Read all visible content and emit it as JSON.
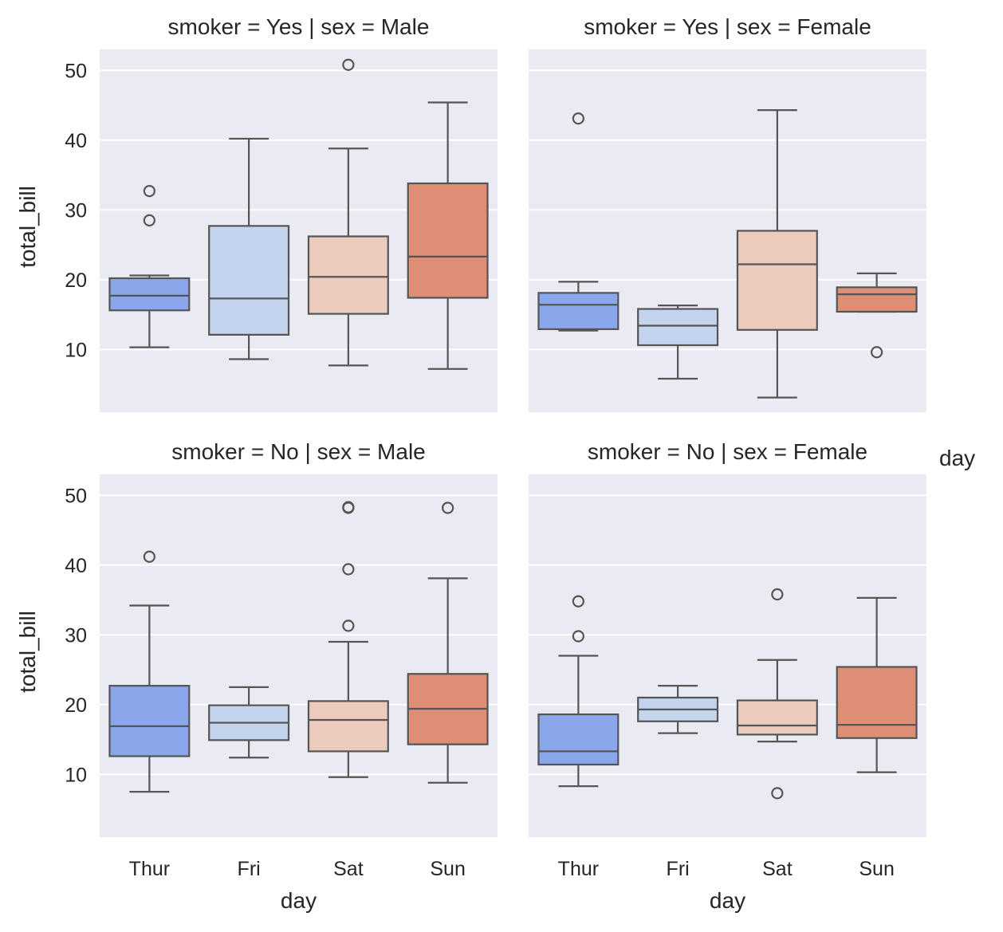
{
  "chart_data": {
    "type": "box",
    "row_var": "smoker",
    "col_var": "sex",
    "x_var": "day",
    "y_var": "total_bill",
    "categories": [
      "Thur",
      "Fri",
      "Sat",
      "Sun"
    ],
    "palette": [
      "#89a7ea",
      "#c4d4ef",
      "#eccbbd",
      "#df8e76"
    ],
    "ylim": [
      1,
      53
    ],
    "yticks": [
      10,
      20,
      30,
      40,
      50
    ],
    "legend_title": "day",
    "panels": [
      {
        "title": "smoker = Yes | sex = Male",
        "ylabel": "total_bill",
        "xlabel": "",
        "boxes": [
          {
            "day": "Thur",
            "q1": 15.6,
            "median": 17.7,
            "q3": 20.2,
            "whislo": 10.3,
            "whishi": 20.6,
            "fliers": [
              32.7,
              28.5
            ]
          },
          {
            "day": "Fri",
            "q1": 12.1,
            "median": 17.3,
            "q3": 27.7,
            "whislo": 8.6,
            "whishi": 40.2,
            "fliers": []
          },
          {
            "day": "Sat",
            "q1": 15.1,
            "median": 20.4,
            "q3": 26.2,
            "whislo": 7.7,
            "whishi": 38.8,
            "fliers": [
              50.8
            ]
          },
          {
            "day": "Sun",
            "q1": 17.4,
            "median": 23.3,
            "q3": 33.8,
            "whislo": 7.2,
            "whishi": 45.4,
            "fliers": []
          }
        ]
      },
      {
        "title": "smoker = Yes | sex = Female",
        "ylabel": "",
        "xlabel": "",
        "boxes": [
          {
            "day": "Thur",
            "q1": 12.9,
            "median": 16.4,
            "q3": 18.1,
            "whislo": 12.7,
            "whishi": 19.7,
            "fliers": [
              43.1
            ]
          },
          {
            "day": "Fri",
            "q1": 10.6,
            "median": 13.4,
            "q3": 15.8,
            "whislo": 5.8,
            "whishi": 16.3,
            "fliers": []
          },
          {
            "day": "Sat",
            "q1": 12.8,
            "median": 22.2,
            "q3": 27.0,
            "whislo": 3.1,
            "whishi": 44.3,
            "fliers": []
          },
          {
            "day": "Sun",
            "q1": 15.4,
            "median": 17.9,
            "q3": 18.9,
            "whislo": 15.4,
            "whishi": 20.9,
            "fliers": [
              9.6
            ]
          }
        ]
      },
      {
        "title": "smoker = No | sex = Male",
        "ylabel": "total_bill",
        "xlabel": "day",
        "boxes": [
          {
            "day": "Thur",
            "q1": 12.6,
            "median": 16.9,
            "q3": 22.7,
            "whislo": 7.5,
            "whishi": 34.2,
            "fliers": [
              41.2
            ]
          },
          {
            "day": "Fri",
            "q1": 14.9,
            "median": 17.4,
            "q3": 19.9,
            "whislo": 12.4,
            "whishi": 22.5,
            "fliers": []
          },
          {
            "day": "Sat",
            "q1": 13.3,
            "median": 17.8,
            "q3": 20.5,
            "whislo": 9.6,
            "whishi": 29.0,
            "fliers": [
              48.3,
              48.2,
              39.4,
              31.3
            ]
          },
          {
            "day": "Sun",
            "q1": 14.3,
            "median": 19.4,
            "q3": 24.4,
            "whislo": 8.8,
            "whishi": 38.1,
            "fliers": [
              48.2
            ]
          }
        ]
      },
      {
        "title": "smoker = No | sex = Female",
        "ylabel": "",
        "xlabel": "day",
        "boxes": [
          {
            "day": "Thur",
            "q1": 11.4,
            "median": 13.3,
            "q3": 18.6,
            "whislo": 8.3,
            "whishi": 27.0,
            "fliers": [
              34.8,
              29.8
            ]
          },
          {
            "day": "Fri",
            "q1": 17.6,
            "median": 19.3,
            "q3": 21.0,
            "whislo": 15.9,
            "whishi": 22.7,
            "fliers": []
          },
          {
            "day": "Sat",
            "q1": 15.7,
            "median": 17.0,
            "q3": 20.6,
            "whislo": 14.7,
            "whishi": 26.4,
            "fliers": [
              35.8,
              7.3
            ]
          },
          {
            "day": "Sun",
            "q1": 15.2,
            "median": 17.1,
            "q3": 25.4,
            "whislo": 10.3,
            "whishi": 35.3,
            "fliers": []
          }
        ]
      }
    ]
  }
}
